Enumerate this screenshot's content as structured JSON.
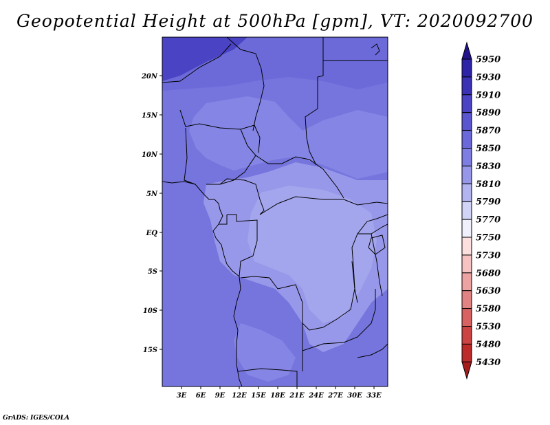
{
  "title": "Geopotential Height at 500hPa [gpm], VT: 2020092700",
  "credit": "GrADS: IGES/COLA",
  "map": {
    "x_ticks": [
      "3E",
      "6E",
      "9E",
      "12E",
      "15E",
      "18E",
      "21E",
      "24E",
      "27E",
      "30E",
      "33E"
    ],
    "y_ticks": [
      "20N",
      "15N",
      "10N",
      "5N",
      "EQ",
      "5S",
      "10S",
      "15S"
    ]
  },
  "colorbar": {
    "levels": [
      "5950",
      "5930",
      "5910",
      "5890",
      "5870",
      "5850",
      "5830",
      "5810",
      "5790",
      "5770",
      "5750",
      "5730",
      "5680",
      "5630",
      "5580",
      "5530",
      "5480",
      "5430"
    ],
    "colors": [
      "#24148c",
      "#2c23a6",
      "#3a31b4",
      "#4a43c4",
      "#5a56cf",
      "#6b69d9",
      "#7e7de2",
      "#9697e8",
      "#b2b4ef",
      "#d2d4f7",
      "#f0f0fc",
      "#fce0e0",
      "#f6c2c2",
      "#eea3a3",
      "#e28383",
      "#d86262",
      "#cc4343",
      "#bc2a2a",
      "#a41c1c"
    ]
  }
}
